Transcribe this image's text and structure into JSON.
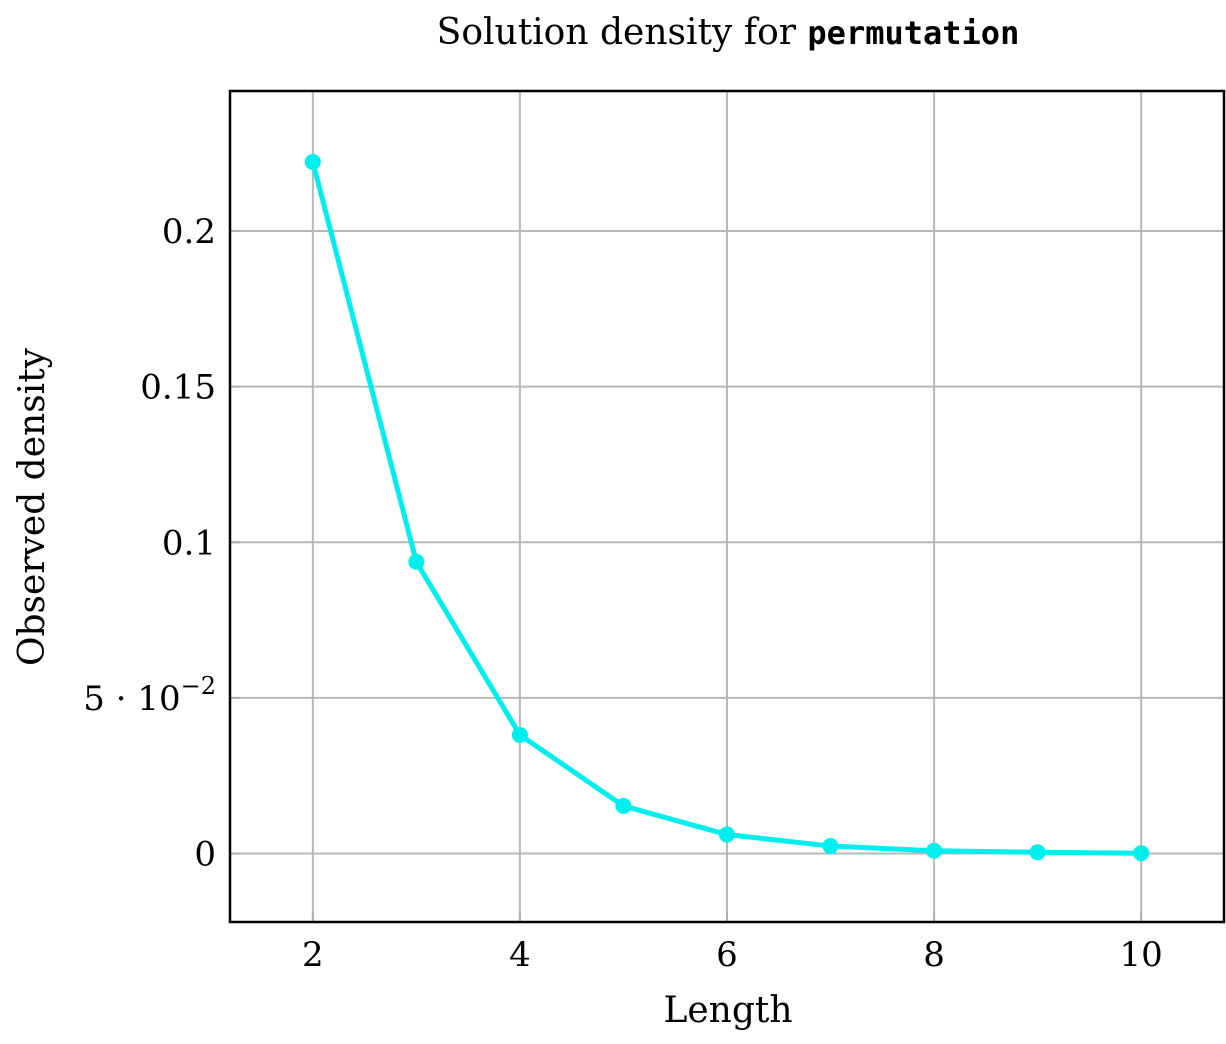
{
  "chart_data": {
    "type": "line",
    "title_prefix": "Solution density for ",
    "title_code": "permutation",
    "xlabel": "Length",
    "ylabel": "Observed density",
    "xlim": [
      1.2,
      10.8
    ],
    "ylim": [
      -0.022,
      0.245
    ],
    "x_ticks": [
      2,
      4,
      6,
      8,
      10
    ],
    "x_tick_labels": [
      "2",
      "4",
      "6",
      "8",
      "10"
    ],
    "y_ticks": [
      0,
      0.05,
      0.1,
      0.15,
      0.2
    ],
    "y_tick_labels": [
      {
        "base": "0",
        "exp": ""
      },
      {
        "base": "5 · 10",
        "exp": "−2"
      },
      {
        "base": "0.1",
        "exp": ""
      },
      {
        "base": "0.15",
        "exp": ""
      },
      {
        "base": "0.2",
        "exp": ""
      }
    ],
    "grid": true,
    "series": [
      {
        "color": "#00eeee",
        "marker": "circle",
        "x": [
          2,
          3,
          4,
          5,
          6,
          7,
          8,
          9,
          10
        ],
        "y": [
          0.2222,
          0.0937,
          0.0381,
          0.0153,
          0.0061,
          0.0024,
          0.0009,
          0.0004,
          0.0001
        ]
      }
    ]
  }
}
